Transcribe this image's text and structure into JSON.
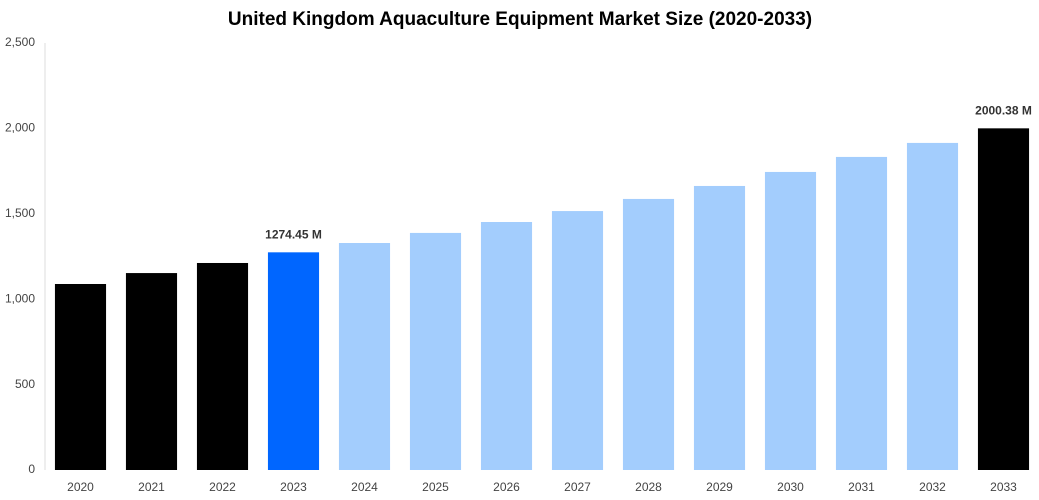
{
  "chart_data": {
    "type": "bar",
    "title": "United Kingdom Aquaculture Equipment Market Size (2020-2033)",
    "categories": [
      "2020",
      "2021",
      "2022",
      "2023",
      "2024",
      "2025",
      "2026",
      "2027",
      "2028",
      "2029",
      "2030",
      "2031",
      "2032",
      "2033"
    ],
    "values": [
      1089,
      1153,
      1212,
      1274.45,
      1329,
      1388,
      1452,
      1516,
      1587,
      1663,
      1745,
      1833,
      1915,
      2000.38
    ],
    "value_labels": [
      null,
      null,
      null,
      "1274.45 M",
      null,
      null,
      null,
      null,
      null,
      null,
      null,
      null,
      null,
      "2000.38 M"
    ],
    "colors": [
      "#000000",
      "#000000",
      "#000000",
      "#0066ff",
      "#a3cdfd",
      "#a3cdfd",
      "#a3cdfd",
      "#a3cdfd",
      "#a3cdfd",
      "#a3cdfd",
      "#a3cdfd",
      "#a3cdfd",
      "#a3cdfd",
      "#000000"
    ],
    "ylim": [
      0,
      2500
    ],
    "yticks": [
      0,
      500,
      {
        "value": 1000,
        "label": "1,000"
      },
      {
        "value": 1500,
        "label": "1,500"
      },
      {
        "value": 2000,
        "label": "2,000"
      },
      {
        "value": 2500,
        "label": "2,500"
      }
    ],
    "grid": false
  }
}
